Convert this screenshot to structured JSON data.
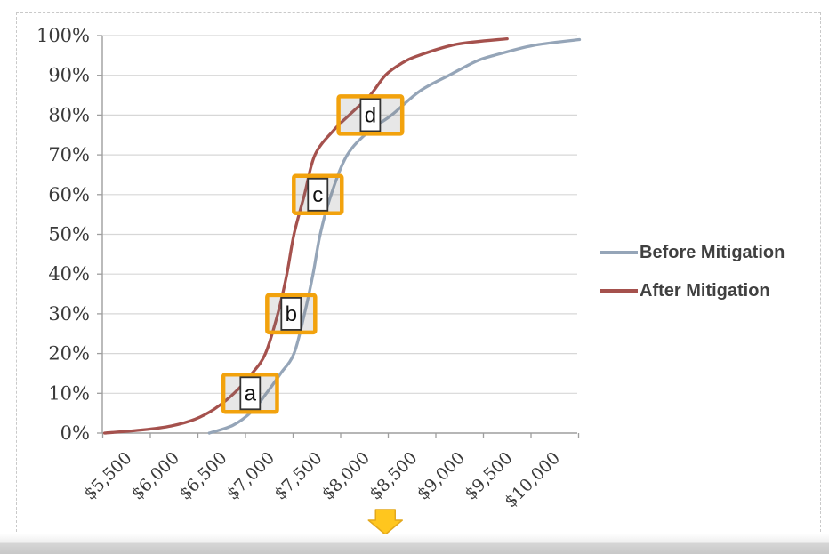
{
  "chart_data": {
    "type": "line",
    "title": "",
    "xlabel": "",
    "ylabel": "",
    "ylim": [
      0,
      100
    ],
    "grid": "horizontal",
    "legend_position": "right",
    "x_tick_labels": [
      "$5,500",
      "$6,000",
      "$6,500",
      "$7,000",
      "$7,500",
      "$8,000",
      "$8,500",
      "$9,000",
      "$9,500",
      "$10,000"
    ],
    "y_tick_labels": [
      "0%",
      "10%",
      "20%",
      "30%",
      "40%",
      "50%",
      "60%",
      "70%",
      "80%",
      "90%",
      "100%"
    ],
    "series": [
      {
        "name": "Before Mitigation",
        "color": "#95a5b8",
        "points_dollars_percent": [
          [
            6400,
            0
          ],
          [
            6650,
            2
          ],
          [
            6850,
            5.5
          ],
          [
            7000,
            10
          ],
          [
            7150,
            15
          ],
          [
            7290,
            20
          ],
          [
            7400,
            30
          ],
          [
            7490,
            40
          ],
          [
            7565,
            50
          ],
          [
            7680,
            60
          ],
          [
            7850,
            70
          ],
          [
            8080,
            76
          ],
          [
            8315,
            80
          ],
          [
            8610,
            86
          ],
          [
            8920,
            90
          ],
          [
            9200,
            93.5
          ],
          [
            9390,
            95
          ],
          [
            9800,
            97.5
          ],
          [
            10290,
            99
          ]
        ]
      },
      {
        "name": "After Mitigation",
        "color": "#a5514d",
        "points_dollars_percent": [
          [
            5300,
            0
          ],
          [
            5700,
            0.8
          ],
          [
            6000,
            1.8
          ],
          [
            6250,
            3.5
          ],
          [
            6450,
            6
          ],
          [
            6660,
            10
          ],
          [
            6850,
            15
          ],
          [
            6990,
            20
          ],
          [
            7120,
            30
          ],
          [
            7215,
            40
          ],
          [
            7290,
            50
          ],
          [
            7400,
            60
          ],
          [
            7510,
            70
          ],
          [
            7700,
            76
          ],
          [
            7870,
            80
          ],
          [
            8090,
            85
          ],
          [
            8250,
            90
          ],
          [
            8420,
            93
          ],
          [
            8600,
            95
          ],
          [
            9000,
            97.8
          ],
          [
            9530,
            99.2
          ]
        ]
      }
    ],
    "annotations": [
      {
        "label": "a",
        "percent": 10
      },
      {
        "label": "b",
        "percent": 30
      },
      {
        "label": "c",
        "percent": 60
      },
      {
        "label": "d",
        "percent": 80
      }
    ],
    "pointer_arrow": {
      "points_to_dollars": 8250,
      "fill": "#ffc61e",
      "border": "#e3a81c"
    }
  },
  "legend": {
    "items": [
      {
        "label": "Before Mitigation",
        "color": "#95a5b8"
      },
      {
        "label": "After Mitigation",
        "color": "#a5514d"
      }
    ]
  },
  "colors": {
    "grid": "#d7d7d7",
    "axis": "#9e9e9e",
    "tick_text": "#3a3a3a",
    "annotation_accent": "#f2a20d",
    "annotation_box_border": "#333333",
    "scrollbar": "#c9c9c9"
  }
}
